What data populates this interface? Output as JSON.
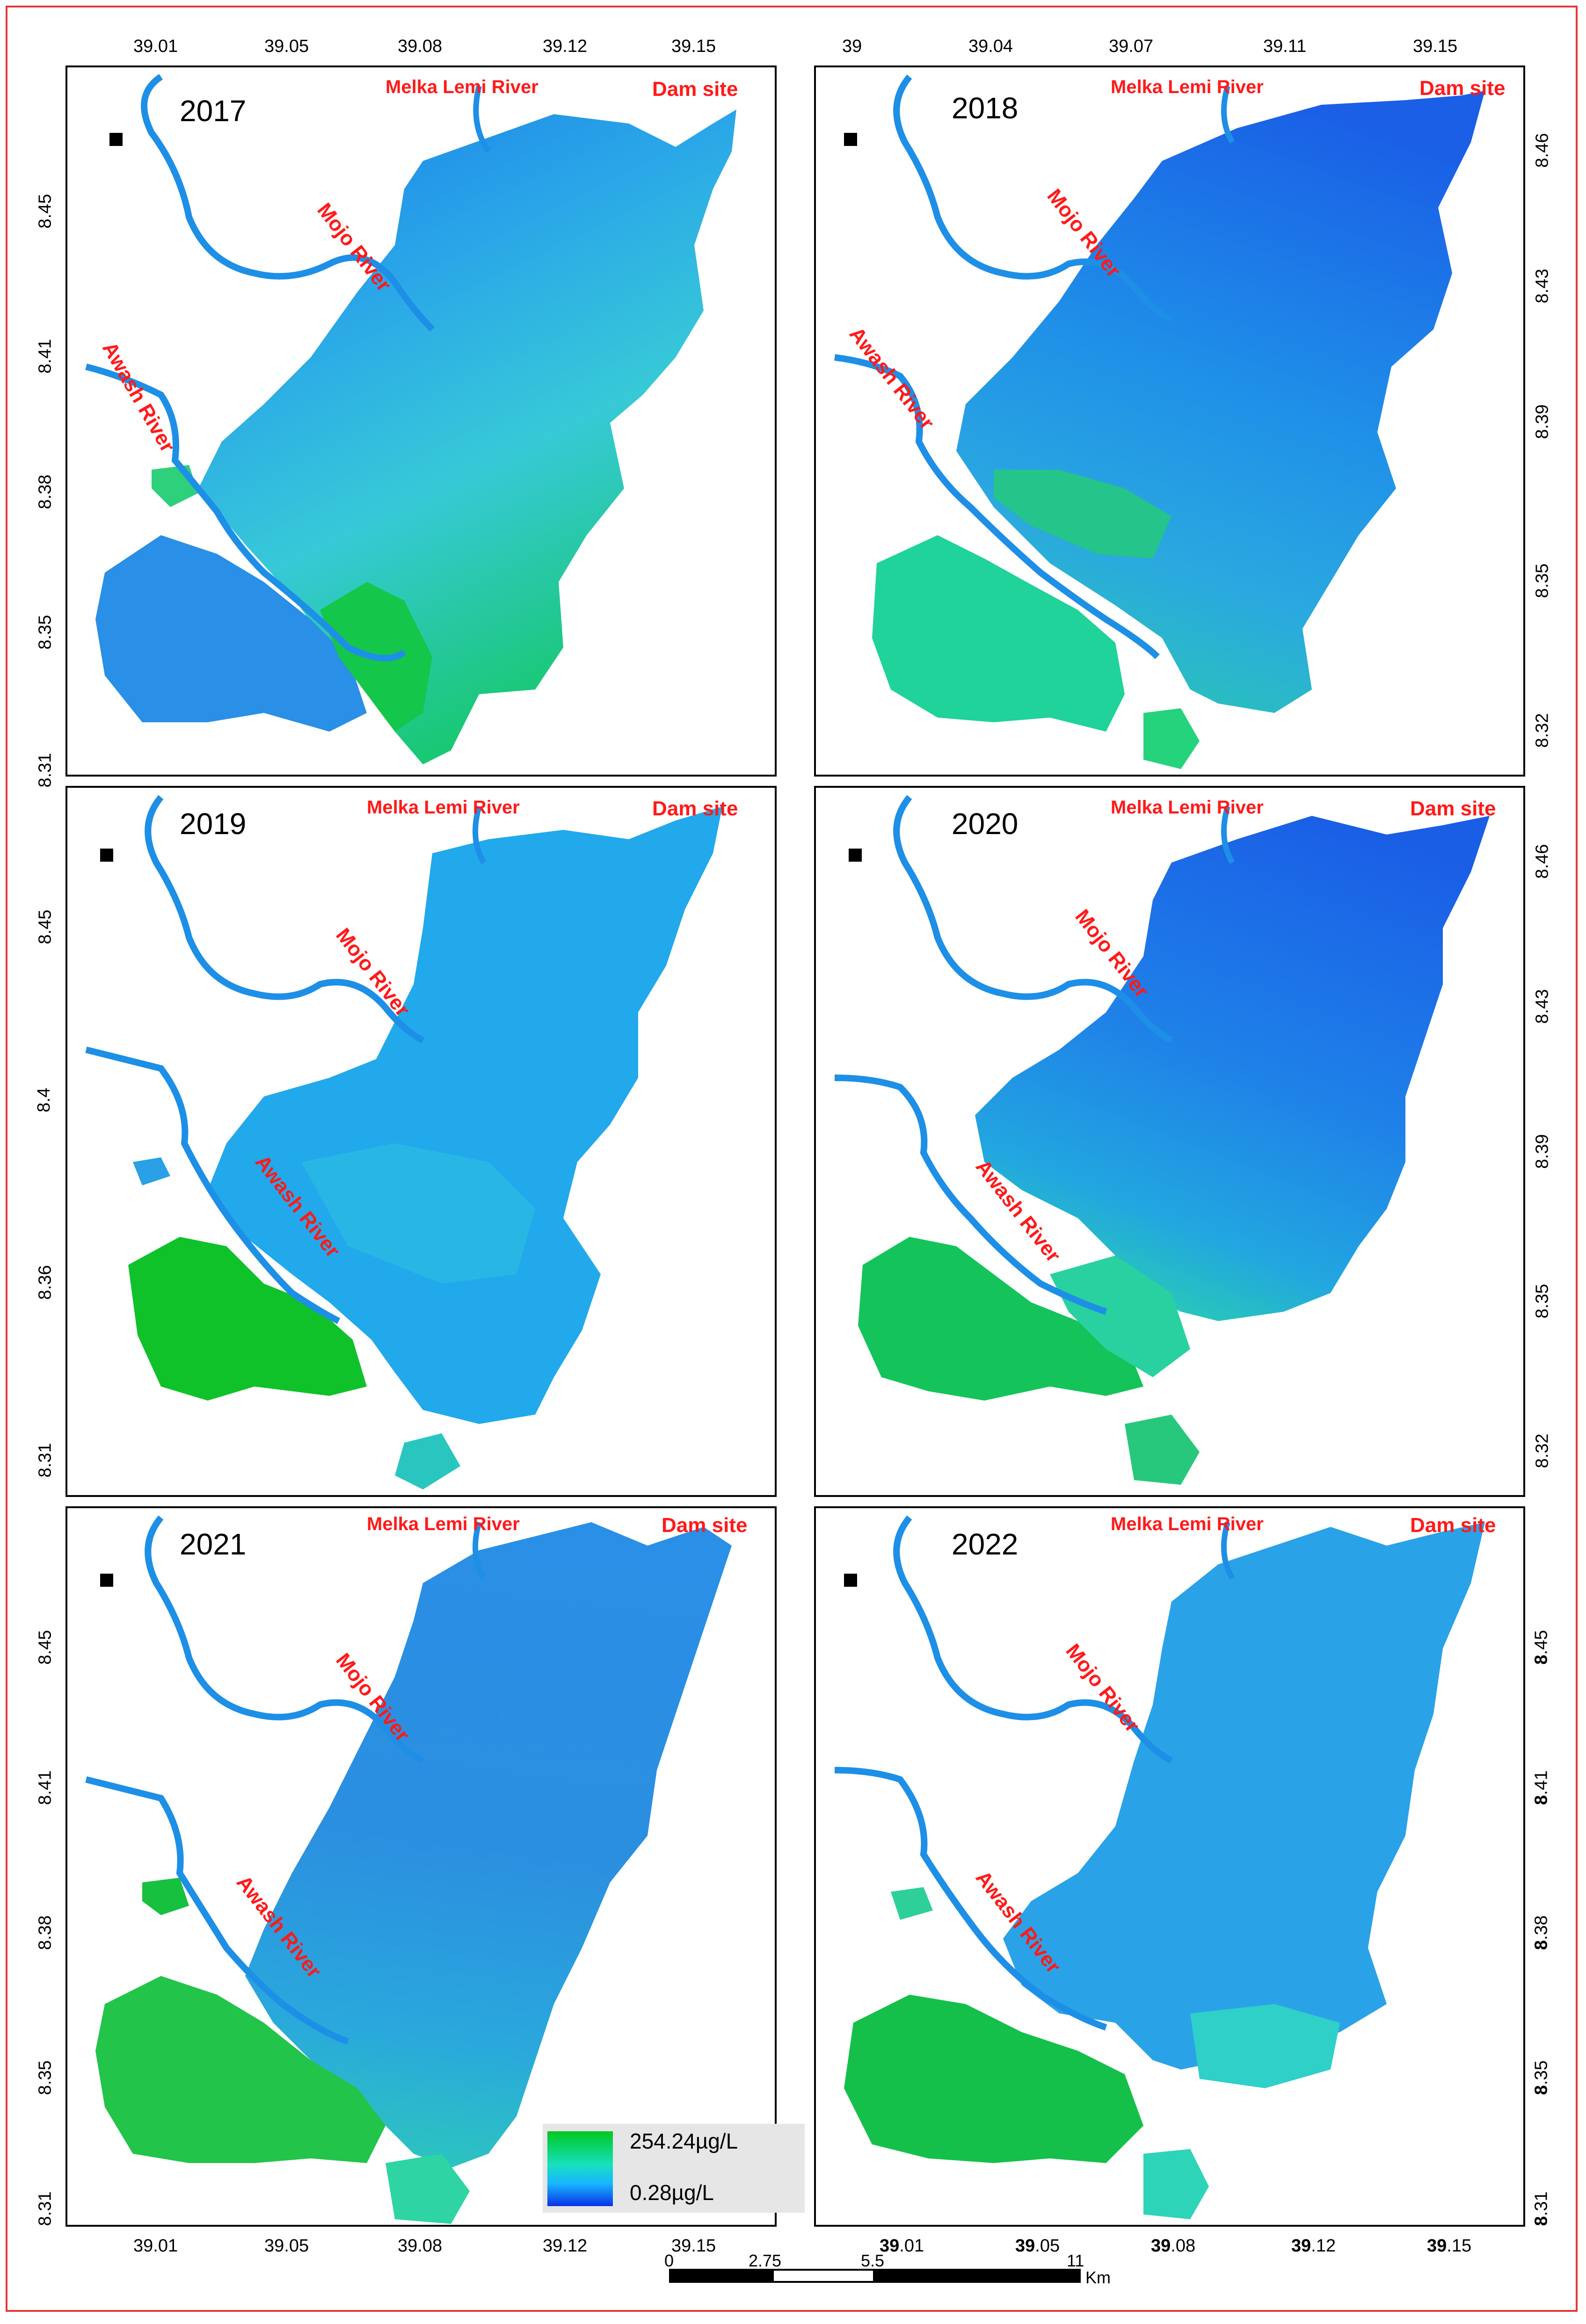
{
  "panels": [
    {
      "year": "2017",
      "rivers": {
        "melka_lemi": "Melka Lemi River",
        "dam": "Dam site",
        "mojo": "Mojo River",
        "awash": "Awash River"
      },
      "x_ticks_top": [
        "39.01",
        "39.05",
        "39.08",
        "39.12",
        "39.15"
      ],
      "y_ticks_left": [
        "8.45",
        "8.41",
        "8.38",
        "8.35",
        "8.31"
      ]
    },
    {
      "year": "2018",
      "rivers": {
        "melka_lemi": "Melka Lemi River",
        "dam": "Dam site",
        "mojo": "Mojo River",
        "awash": "Awash River"
      },
      "x_ticks_top": [
        "39",
        "39.04",
        "39.07",
        "39.11",
        "39.15"
      ],
      "y_ticks_right": [
        "8.46",
        "8.43",
        "8.39",
        "8.35",
        "8.32"
      ]
    },
    {
      "year": "2019",
      "rivers": {
        "melka_lemi": "Melka Lemi River",
        "dam": "Dam site",
        "mojo": "Mojo River",
        "awash": "Awash River"
      },
      "y_ticks_left": [
        "8.45",
        "8.4",
        "8.36",
        "8.31"
      ]
    },
    {
      "year": "2020",
      "rivers": {
        "melka_lemi": "Melka Lemi River",
        "dam": "Dam site",
        "mojo": "Mojo River",
        "awash": "Awash River"
      },
      "y_ticks_right": [
        "8.46",
        "8.43",
        "8.39",
        "8.35",
        "8.32"
      ]
    },
    {
      "year": "2021",
      "rivers": {
        "melka_lemi": "Melka Lemi River",
        "dam": "Dam site",
        "mojo": "Mojo River",
        "awash": "Awash River"
      },
      "x_ticks_bottom": [
        "39.01",
        "39.05",
        "39.08",
        "39.12",
        "39.15"
      ],
      "y_ticks_left": [
        "8.45",
        "8.41",
        "8.38",
        "8.35",
        "8.31"
      ]
    },
    {
      "year": "2022",
      "rivers": {
        "melka_lemi": "Melka Lemi River",
        "dam": "Dam site",
        "mojo": "Mojo River",
        "awash": "Awash River"
      },
      "x_ticks_bottom_parts": [
        [
          "39",
          ".01"
        ],
        [
          "39",
          ".05"
        ],
        [
          "39",
          ".08"
        ],
        [
          "39",
          ".12"
        ],
        [
          "39",
          ".15"
        ]
      ],
      "y_ticks_right_parts": [
        [
          "8",
          ".45"
        ],
        [
          "8",
          ".41"
        ],
        [
          "8",
          ".38"
        ],
        [
          "8",
          ".35"
        ],
        [
          "8",
          ".31"
        ]
      ]
    }
  ],
  "legend": {
    "max": "254.24µg/L",
    "min": "0.28µg/L",
    "colors": [
      "#00c81e",
      "#18e0c0",
      "#19b5ff",
      "#0a32e6"
    ]
  },
  "scale_bar": {
    "labels": [
      "0",
      "2.75",
      "5.5",
      "11"
    ],
    "unit": "Km"
  },
  "colors": {
    "frame": "#e03a3a",
    "river": "#1e8fe6",
    "label": "#ff1a1a",
    "high": "#00c81e",
    "mid": "#19d9d0",
    "low": "#1a6fe8"
  }
}
